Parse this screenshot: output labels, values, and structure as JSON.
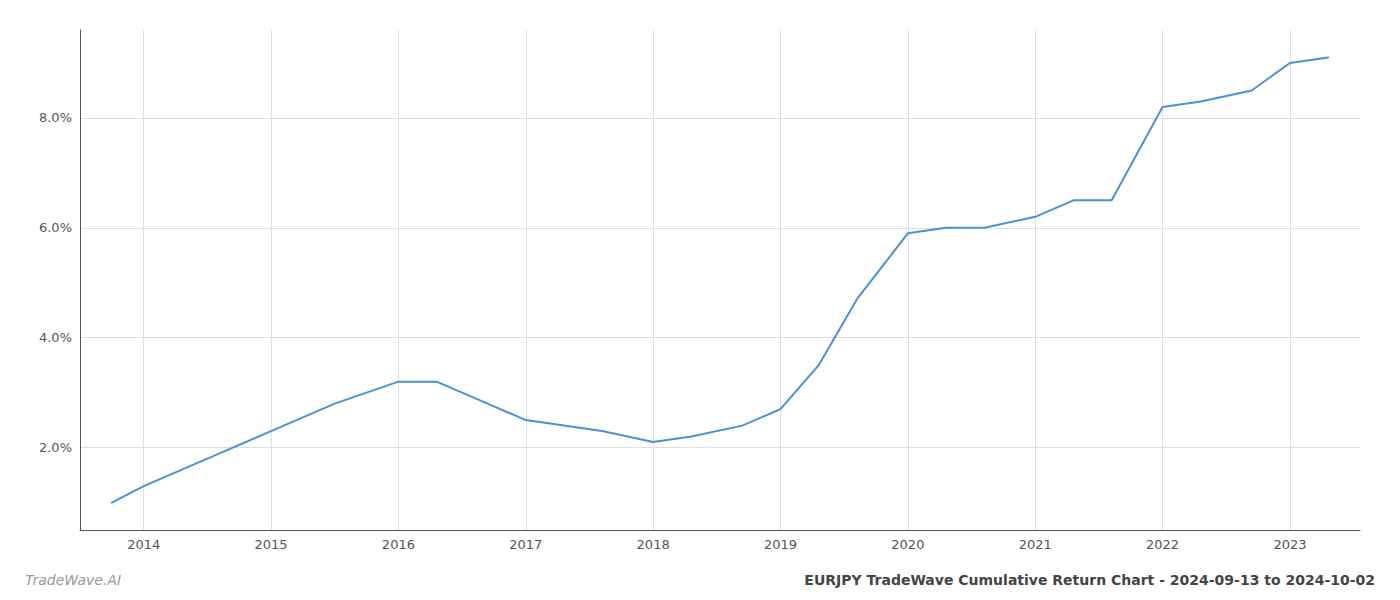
{
  "chart_data": {
    "type": "line",
    "title": "EURJPY TradeWave Cumulative Return Chart - 2024-09-13 to 2024-10-02",
    "annotations": [
      "TradeWave.AI"
    ],
    "x": [
      2013.75,
      2014.0,
      2014.5,
      2015.0,
      2015.5,
      2016.0,
      2016.3,
      2016.7,
      2017.0,
      2017.3,
      2017.6,
      2018.0,
      2018.3,
      2018.7,
      2019.0,
      2019.3,
      2019.6,
      2020.0,
      2020.3,
      2020.6,
      2021.0,
      2021.3,
      2021.6,
      2022.0,
      2022.3,
      2022.7,
      2023.0,
      2023.3
    ],
    "values": [
      0.01,
      0.013,
      0.018,
      0.023,
      0.028,
      0.032,
      0.032,
      0.028,
      0.025,
      0.024,
      0.023,
      0.021,
      0.022,
      0.024,
      0.027,
      0.035,
      0.047,
      0.059,
      0.06,
      0.06,
      0.062,
      0.065,
      0.065,
      0.082,
      0.083,
      0.085,
      0.09,
      0.091
    ],
    "color": "#4a90d9",
    "xlim": [
      2013.5,
      2023.55
    ],
    "ylim": [
      0.005,
      0.096
    ],
    "xticks": [
      2014,
      2015,
      2016,
      2017,
      2018,
      2019,
      2020,
      2021,
      2022,
      2023
    ],
    "yticks": [
      {
        "value": 0.02,
        "label": "2.0%"
      },
      {
        "value": 0.04,
        "label": "4.0%"
      },
      {
        "value": 0.06,
        "label": "6.0%"
      },
      {
        "value": 0.08,
        "label": "8.0%"
      }
    ],
    "grid": true
  }
}
